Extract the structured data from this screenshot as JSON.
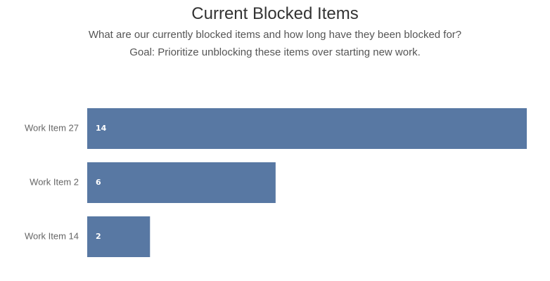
{
  "chart_data": {
    "type": "bar",
    "orientation": "horizontal",
    "title": "Current Blocked Items",
    "subtitle": [
      "What are our currently blocked items and how long have they been blocked for?",
      "Goal: Prioritize unblocking these items over starting new work."
    ],
    "categories": [
      "Work Item 27",
      "Work Item 2",
      "Work Item 14"
    ],
    "values": [
      14,
      6,
      2
    ],
    "xlim": [
      0,
      14
    ],
    "grid": false,
    "legend": "none",
    "colors": {
      "bar": "#5878A3"
    }
  }
}
